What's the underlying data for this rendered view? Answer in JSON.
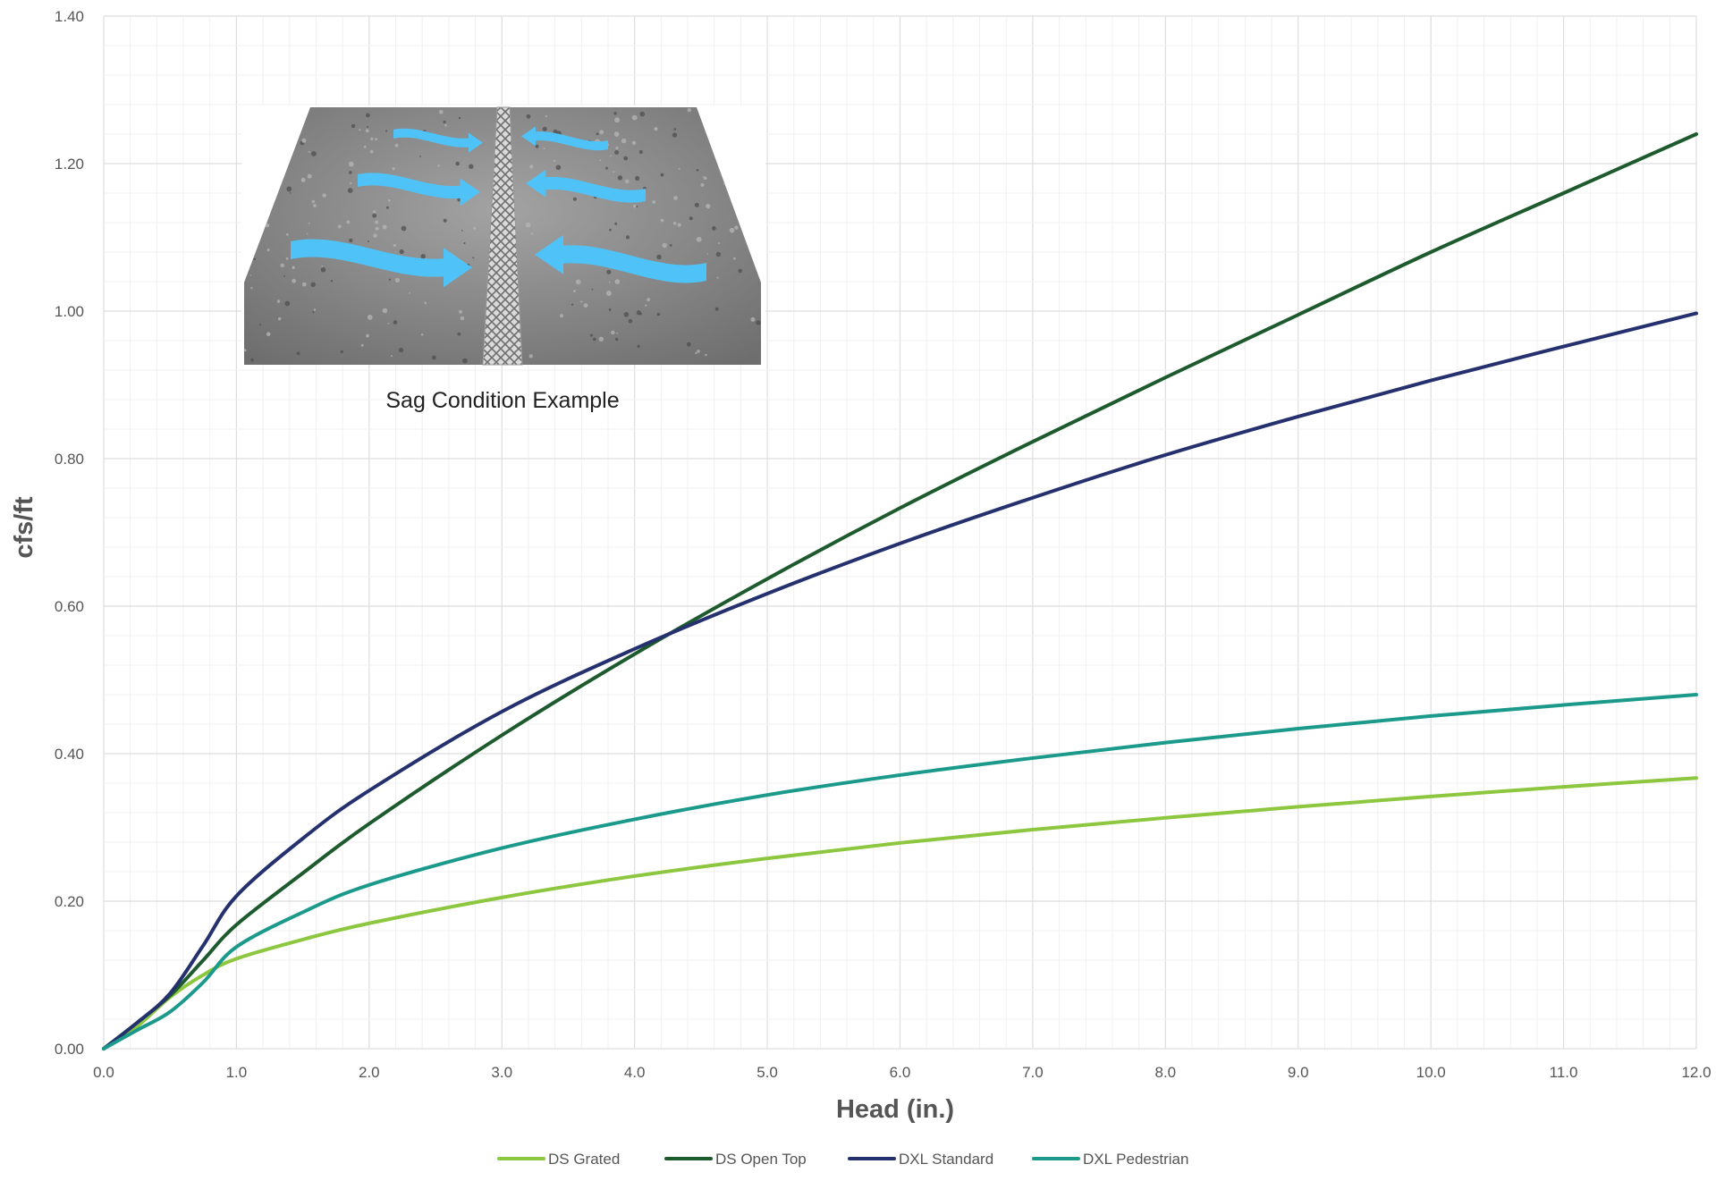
{
  "chart_data": {
    "type": "line",
    "xlabel": "Head (in.)",
    "ylabel": "cfs/ft",
    "xlim": [
      0,
      12
    ],
    "ylim": [
      0,
      1.4
    ],
    "x_ticks": [
      "0.0",
      "1.0",
      "2.0",
      "3.0",
      "4.0",
      "5.0",
      "6.0",
      "7.0",
      "8.0",
      "9.0",
      "10.0",
      "11.0",
      "12.0"
    ],
    "y_ticks": [
      "0.00",
      "0.20",
      "0.40",
      "0.60",
      "0.80",
      "1.00",
      "1.20",
      "1.40"
    ],
    "grid": true,
    "legend_position": "bottom-center",
    "series": [
      {
        "name": "DS Grated",
        "color": "#8dc63f",
        "points": [
          [
            0,
            0
          ],
          [
            0.25,
            0.03
          ],
          [
            0.5,
            0.07
          ],
          [
            0.75,
            0.1
          ],
          [
            1.0,
            0.122
          ],
          [
            1.5,
            0.148
          ],
          [
            2.0,
            0.17
          ],
          [
            3.0,
            0.205
          ],
          [
            4.0,
            0.234
          ],
          [
            5.0,
            0.258
          ],
          [
            6.0,
            0.279
          ],
          [
            7.0,
            0.297
          ],
          [
            8.0,
            0.313
          ],
          [
            9.0,
            0.328
          ],
          [
            10.0,
            0.342
          ],
          [
            11.0,
            0.355
          ],
          [
            12.0,
            0.367
          ]
        ]
      },
      {
        "name": "DS Open Top",
        "color": "#1d5b2e",
        "points": [
          [
            0,
            0
          ],
          [
            0.25,
            0.035
          ],
          [
            0.5,
            0.072
          ],
          [
            0.75,
            0.12
          ],
          [
            1.0,
            0.168
          ],
          [
            1.5,
            0.238
          ],
          [
            2.0,
            0.305
          ],
          [
            3.0,
            0.425
          ],
          [
            4.0,
            0.535
          ],
          [
            5.0,
            0.637
          ],
          [
            6.0,
            0.733
          ],
          [
            7.0,
            0.823
          ],
          [
            8.0,
            0.91
          ],
          [
            9.0,
            0.995
          ],
          [
            10.0,
            1.08
          ],
          [
            11.0,
            1.16
          ],
          [
            12.0,
            1.24
          ]
        ]
      },
      {
        "name": "DXL Standard",
        "color": "#25306e",
        "points": [
          [
            0,
            0
          ],
          [
            0.25,
            0.035
          ],
          [
            0.5,
            0.075
          ],
          [
            0.75,
            0.14
          ],
          [
            1.0,
            0.207
          ],
          [
            1.5,
            0.285
          ],
          [
            2.0,
            0.35
          ],
          [
            3.0,
            0.457
          ],
          [
            4.0,
            0.542
          ],
          [
            5.0,
            0.617
          ],
          [
            6.0,
            0.685
          ],
          [
            7.0,
            0.747
          ],
          [
            8.0,
            0.805
          ],
          [
            9.0,
            0.857
          ],
          [
            10.0,
            0.906
          ],
          [
            11.0,
            0.952
          ],
          [
            12.0,
            0.997
          ]
        ]
      },
      {
        "name": "DXL Pedestrian",
        "color": "#1b9a8c",
        "points": [
          [
            0,
            0
          ],
          [
            0.25,
            0.025
          ],
          [
            0.5,
            0.05
          ],
          [
            0.75,
            0.09
          ],
          [
            1.0,
            0.138
          ],
          [
            1.5,
            0.185
          ],
          [
            2.0,
            0.222
          ],
          [
            3.0,
            0.272
          ],
          [
            4.0,
            0.311
          ],
          [
            5.0,
            0.344
          ],
          [
            6.0,
            0.371
          ],
          [
            7.0,
            0.394
          ],
          [
            8.0,
            0.415
          ],
          [
            9.0,
            0.434
          ],
          [
            10.0,
            0.451
          ],
          [
            11.0,
            0.466
          ],
          [
            12.0,
            0.48
          ]
        ]
      }
    ],
    "inset": {
      "caption": "Sag Condition Example",
      "concrete_color": "#8a8a8a",
      "grate_color": "#cfcfcf",
      "arrow_color": "#4fc3f7"
    }
  },
  "colors": {
    "grid_major": "#dddddd",
    "grid_minor": "#f0f0f0",
    "axis_text": "#555555"
  }
}
